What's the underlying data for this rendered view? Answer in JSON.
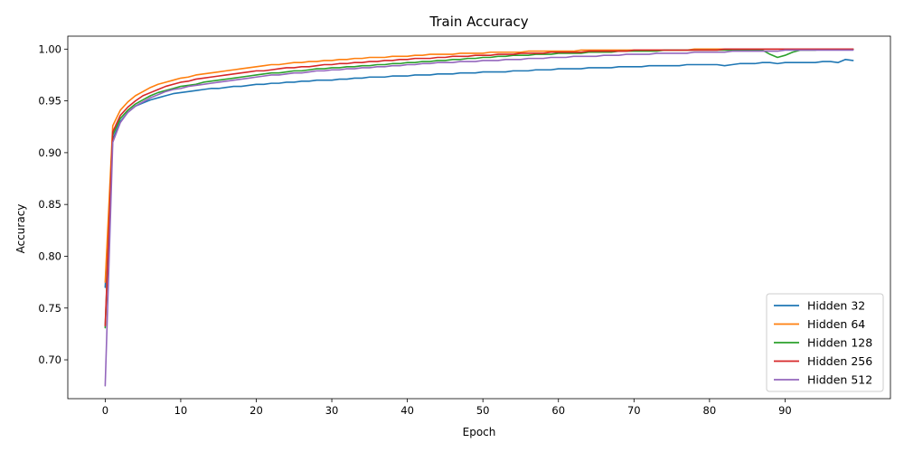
{
  "chart_data": {
    "type": "line",
    "title": "Train Accuracy",
    "xlabel": "Epoch",
    "ylabel": "Accuracy",
    "xlim": [
      -4.95,
      103.95
    ],
    "ylim": [
      0.6625,
      1.0125
    ],
    "xticks": [
      0,
      10,
      20,
      30,
      40,
      50,
      60,
      70,
      80,
      90
    ],
    "yticks": [
      0.7,
      0.75,
      0.8,
      0.85,
      0.9,
      0.95,
      1.0
    ],
    "ytick_labels": [
      "0.70",
      "0.75",
      "0.80",
      "0.85",
      "0.90",
      "0.95",
      "1.00"
    ],
    "grid": false,
    "legend_position": "lower-right",
    "series": [
      {
        "name": "Hidden 32",
        "color": "#1f77b4",
        "values": [
          0.77,
          0.913,
          0.93,
          0.939,
          0.945,
          0.948,
          0.951,
          0.953,
          0.955,
          0.957,
          0.958,
          0.959,
          0.96,
          0.961,
          0.962,
          0.962,
          0.963,
          0.964,
          0.964,
          0.965,
          0.966,
          0.966,
          0.967,
          0.967,
          0.968,
          0.968,
          0.969,
          0.969,
          0.97,
          0.97,
          0.97,
          0.971,
          0.971,
          0.972,
          0.972,
          0.973,
          0.973,
          0.973,
          0.974,
          0.974,
          0.974,
          0.975,
          0.975,
          0.975,
          0.976,
          0.976,
          0.976,
          0.977,
          0.977,
          0.977,
          0.978,
          0.978,
          0.978,
          0.978,
          0.979,
          0.979,
          0.979,
          0.98,
          0.98,
          0.98,
          0.981,
          0.981,
          0.981,
          0.981,
          0.982,
          0.982,
          0.982,
          0.982,
          0.983,
          0.983,
          0.983,
          0.983,
          0.984,
          0.984,
          0.984,
          0.984,
          0.984,
          0.985,
          0.985,
          0.985,
          0.985,
          0.985,
          0.984,
          0.985,
          0.986,
          0.986,
          0.986,
          0.987,
          0.987,
          0.986,
          0.987,
          0.987,
          0.987,
          0.987,
          0.987,
          0.988,
          0.988,
          0.987,
          0.99,
          0.989
        ]
      },
      {
        "name": "Hidden 64",
        "color": "#ff7f0e",
        "values": [
          0.775,
          0.926,
          0.941,
          0.949,
          0.955,
          0.959,
          0.963,
          0.966,
          0.968,
          0.97,
          0.972,
          0.973,
          0.975,
          0.976,
          0.977,
          0.978,
          0.979,
          0.98,
          0.981,
          0.982,
          0.983,
          0.984,
          0.985,
          0.985,
          0.986,
          0.987,
          0.987,
          0.988,
          0.988,
          0.989,
          0.989,
          0.99,
          0.99,
          0.991,
          0.991,
          0.992,
          0.992,
          0.992,
          0.993,
          0.993,
          0.993,
          0.994,
          0.994,
          0.995,
          0.995,
          0.995,
          0.995,
          0.996,
          0.996,
          0.996,
          0.996,
          0.997,
          0.997,
          0.997,
          0.997,
          0.997,
          0.998,
          0.998,
          0.998,
          0.998,
          0.998,
          0.998,
          0.998,
          0.999,
          0.999,
          0.999,
          0.999,
          0.999,
          0.999,
          0.999,
          0.999,
          0.999,
          0.999,
          0.999,
          0.999,
          0.999,
          0.999,
          0.999,
          1.0,
          1.0,
          1.0,
          1.0,
          1.0,
          1.0,
          1.0,
          1.0,
          1.0,
          1.0,
          1.0,
          1.0,
          1.0,
          1.0,
          1.0,
          1.0,
          1.0,
          1.0,
          1.0,
          1.0,
          1.0,
          1.0
        ]
      },
      {
        "name": "Hidden 128",
        "color": "#2ca02c",
        "values": [
          0.731,
          0.917,
          0.933,
          0.941,
          0.947,
          0.951,
          0.955,
          0.958,
          0.96,
          0.962,
          0.964,
          0.965,
          0.966,
          0.968,
          0.969,
          0.97,
          0.971,
          0.972,
          0.973,
          0.974,
          0.975,
          0.976,
          0.977,
          0.977,
          0.978,
          0.979,
          0.979,
          0.98,
          0.981,
          0.981,
          0.982,
          0.982,
          0.983,
          0.983,
          0.984,
          0.984,
          0.985,
          0.985,
          0.986,
          0.986,
          0.987,
          0.987,
          0.988,
          0.988,
          0.989,
          0.989,
          0.99,
          0.99,
          0.991,
          0.991,
          0.992,
          0.992,
          0.993,
          0.993,
          0.994,
          0.994,
          0.994,
          0.995,
          0.995,
          0.995,
          0.996,
          0.996,
          0.996,
          0.996,
          0.997,
          0.997,
          0.997,
          0.997,
          0.998,
          0.998,
          0.998,
          0.998,
          0.998,
          0.998,
          0.999,
          0.999,
          0.999,
          0.999,
          0.999,
          0.999,
          0.999,
          0.999,
          0.999,
          0.999,
          0.999,
          0.999,
          0.999,
          0.999,
          0.995,
          0.992,
          0.994,
          0.997,
          0.999,
          0.999,
          0.999,
          1.0,
          1.0,
          1.0,
          1.0,
          1.0
        ]
      },
      {
        "name": "Hidden 256",
        "color": "#d62728",
        "values": [
          0.733,
          0.92,
          0.936,
          0.944,
          0.95,
          0.955,
          0.958,
          0.961,
          0.964,
          0.966,
          0.968,
          0.969,
          0.971,
          0.972,
          0.973,
          0.974,
          0.975,
          0.976,
          0.977,
          0.978,
          0.979,
          0.979,
          0.98,
          0.981,
          0.982,
          0.982,
          0.983,
          0.983,
          0.984,
          0.985,
          0.985,
          0.986,
          0.986,
          0.987,
          0.987,
          0.988,
          0.988,
          0.989,
          0.989,
          0.99,
          0.99,
          0.991,
          0.991,
          0.991,
          0.992,
          0.992,
          0.993,
          0.993,
          0.993,
          0.994,
          0.994,
          0.994,
          0.995,
          0.995,
          0.995,
          0.996,
          0.996,
          0.996,
          0.996,
          0.997,
          0.997,
          0.997,
          0.997,
          0.997,
          0.998,
          0.998,
          0.998,
          0.998,
          0.998,
          0.998,
          0.999,
          0.999,
          0.999,
          0.999,
          0.999,
          0.999,
          0.999,
          0.999,
          0.999,
          0.999,
          0.999,
          0.999,
          1.0,
          1.0,
          1.0,
          1.0,
          1.0,
          1.0,
          1.0,
          1.0,
          1.0,
          1.0,
          1.0,
          1.0,
          1.0,
          1.0,
          1.0,
          1.0,
          1.0,
          1.0
        ]
      },
      {
        "name": "Hidden 512",
        "color": "#9467bd",
        "values": [
          0.675,
          0.91,
          0.929,
          0.939,
          0.945,
          0.949,
          0.953,
          0.956,
          0.959,
          0.961,
          0.962,
          0.964,
          0.965,
          0.966,
          0.967,
          0.968,
          0.969,
          0.97,
          0.971,
          0.972,
          0.973,
          0.974,
          0.975,
          0.975,
          0.976,
          0.977,
          0.977,
          0.978,
          0.979,
          0.979,
          0.98,
          0.98,
          0.981,
          0.981,
          0.982,
          0.982,
          0.983,
          0.983,
          0.984,
          0.984,
          0.985,
          0.985,
          0.986,
          0.986,
          0.987,
          0.987,
          0.987,
          0.988,
          0.988,
          0.988,
          0.989,
          0.989,
          0.989,
          0.99,
          0.99,
          0.99,
          0.991,
          0.991,
          0.991,
          0.992,
          0.992,
          0.992,
          0.993,
          0.993,
          0.993,
          0.993,
          0.994,
          0.994,
          0.994,
          0.995,
          0.995,
          0.995,
          0.995,
          0.996,
          0.996,
          0.996,
          0.996,
          0.996,
          0.997,
          0.997,
          0.997,
          0.997,
          0.997,
          0.998,
          0.998,
          0.998,
          0.998,
          0.998,
          0.998,
          0.998,
          0.999,
          0.999,
          0.999,
          0.999,
          0.999,
          0.999,
          0.999,
          0.999,
          0.999,
          0.999
        ]
      }
    ]
  }
}
